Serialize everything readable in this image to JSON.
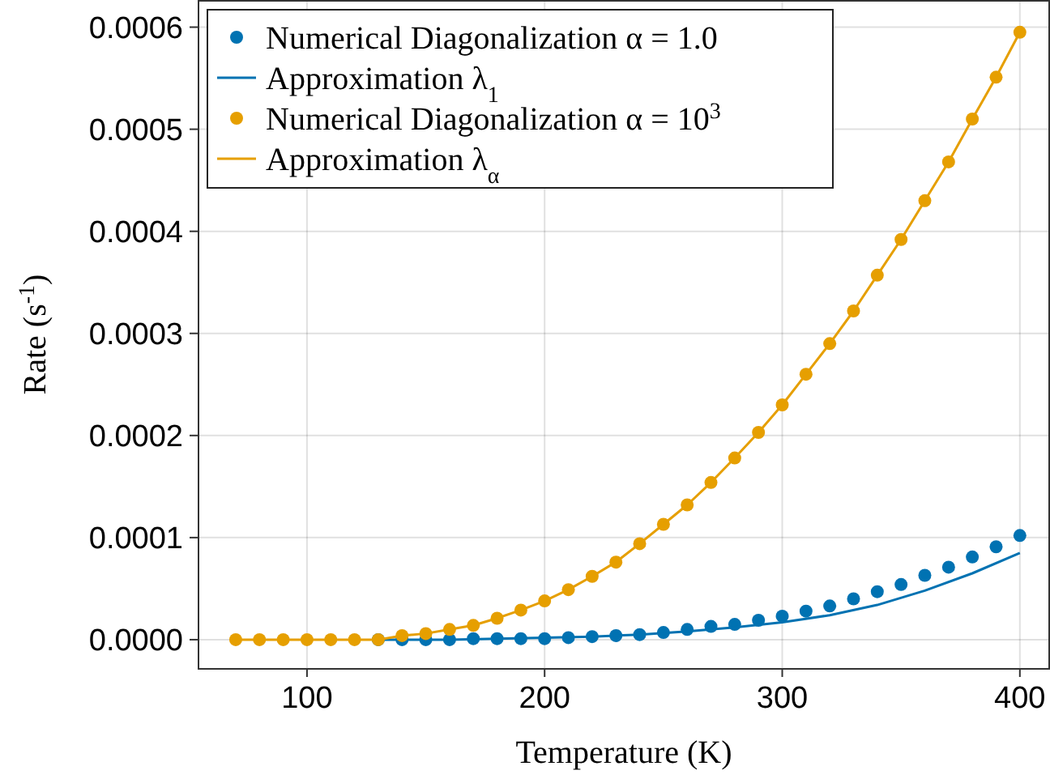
{
  "chart_data": {
    "type": "scatter",
    "xlabel": "Temperature (K)",
    "ylabel": "Rate (s$^{-1}$)",
    "xlim": [
      54,
      412
    ],
    "ylim": [
      -2.86e-05,
      0.000625
    ],
    "xticks": [
      100,
      200,
      300,
      400
    ],
    "yticks": [
      {
        "value": 0,
        "label": "0.0000"
      },
      {
        "value": 0.0001,
        "label": "0.0001"
      },
      {
        "value": 0.0002,
        "label": "0.0002"
      },
      {
        "value": 0.0003,
        "label": "0.0003"
      },
      {
        "value": 0.0004,
        "label": "0.0004"
      },
      {
        "value": 0.0005,
        "label": "0.0005"
      },
      {
        "value": 0.0006,
        "label": "0.0006"
      }
    ],
    "grid": true,
    "legend": "top left",
    "series": [
      {
        "name": "Numerical Diagonalization α = 1.0",
        "marker": "circle",
        "color": "#0072b2",
        "x": [
          130,
          140,
          150,
          160,
          170,
          180,
          190,
          200,
          210,
          220,
          230,
          240,
          250,
          260,
          270,
          280,
          290,
          300,
          310,
          320,
          330,
          340,
          350,
          360,
          370,
          380,
          390,
          400
        ],
        "values": [
          0,
          0,
          0,
          0,
          1e-06,
          1e-06,
          1e-06,
          1e-06,
          2e-06,
          3e-06,
          4e-06,
          5e-06,
          7e-06,
          1e-05,
          1.3e-05,
          1.5e-05,
          1.9e-05,
          2.3e-05,
          2.8e-05,
          3.3e-05,
          4e-05,
          4.7e-05,
          5.4e-05,
          6.3e-05,
          7.1e-05,
          8.1e-05,
          9.1e-05,
          0.000102
        ]
      },
      {
        "name": "Approximation λ$_{1}$",
        "type": "line",
        "marker": "none",
        "color": "#0072b2",
        "x": [
          130,
          140,
          160,
          180,
          200,
          220,
          240,
          260,
          280,
          300,
          320,
          340,
          360,
          380,
          400
        ],
        "values": [
          0,
          0,
          0,
          1e-06,
          2e-06,
          3e-06,
          5e-06,
          8e-06,
          1.2e-05,
          1.7e-05,
          2.4e-05,
          3.4e-05,
          4.8e-05,
          6.5e-05,
          8.5e-05
        ]
      },
      {
        "name": "Numerical Diagonalization α = 10$^{3}$",
        "marker": "circle",
        "color": "#e69f00",
        "x": [
          70,
          80,
          90,
          100,
          110,
          120,
          130,
          140,
          150,
          160,
          170,
          180,
          190,
          200,
          210,
          220,
          230,
          240,
          250,
          260,
          270,
          280,
          290,
          300,
          310,
          320,
          330,
          340,
          350,
          360,
          370,
          380,
          390,
          400
        ],
        "values": [
          0,
          0,
          0,
          0,
          0,
          0,
          0,
          4e-06,
          6e-06,
          1e-05,
          1.4e-05,
          2.1e-05,
          2.9e-05,
          3.8e-05,
          4.9e-05,
          6.2e-05,
          7.6e-05,
          9.4e-05,
          0.000113,
          0.000132,
          0.000154,
          0.000178,
          0.000203,
          0.00023,
          0.00026,
          0.00029,
          0.000322,
          0.000357,
          0.000392,
          0.00043,
          0.000468,
          0.00051,
          0.000551,
          0.000595
        ]
      },
      {
        "name": "Approximation λ$_{α}$",
        "type": "line",
        "marker": "none",
        "color": "#e69f00",
        "x": [
          70,
          80,
          90,
          100,
          110,
          120,
          130,
          140,
          150,
          160,
          170,
          180,
          190,
          200,
          210,
          220,
          230,
          240,
          250,
          260,
          270,
          280,
          290,
          300,
          310,
          320,
          330,
          340,
          350,
          360,
          370,
          380,
          390,
          400
        ],
        "values": [
          0,
          0,
          0,
          0,
          0,
          0,
          0,
          4e-06,
          6e-06,
          1e-05,
          1.4e-05,
          2.1e-05,
          2.9e-05,
          3.8e-05,
          4.9e-05,
          6.2e-05,
          7.6e-05,
          9.4e-05,
          0.000113,
          0.000132,
          0.000154,
          0.000178,
          0.000203,
          0.00023,
          0.00026,
          0.00029,
          0.000322,
          0.000357,
          0.000392,
          0.00043,
          0.000468,
          0.00051,
          0.000551,
          0.000595
        ]
      }
    ]
  }
}
